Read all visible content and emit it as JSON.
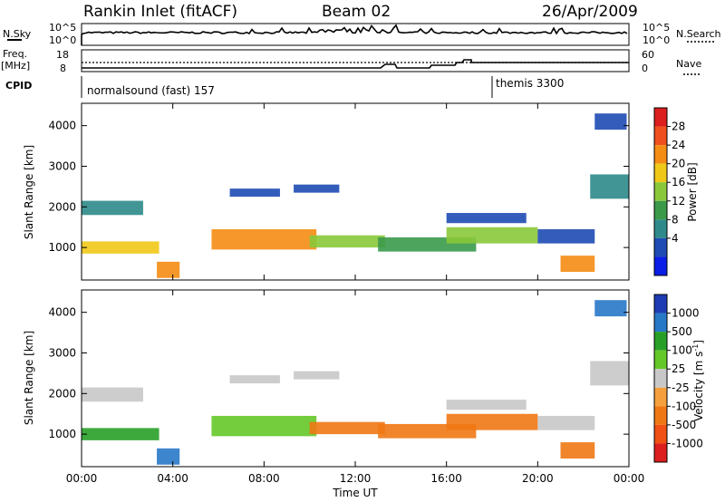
{
  "header": {
    "station": "Rankin Inlet (fitACF)",
    "beam": "Beam 02",
    "date": "26/Apr/2009"
  },
  "chart_data": [
    {
      "type": "line",
      "name": "n-sky-search-panel",
      "left_label": "N.Sky",
      "right_label": "N.Search",
      "left_ticks": [
        "10^5",
        "10^0"
      ],
      "right_ticks": [
        "10^5",
        "10^0"
      ]
    },
    {
      "type": "line",
      "name": "freq-nave-panel",
      "left_label_line1": "Freq.",
      "left_label_line2": "[MHz]",
      "right_label": "Nave",
      "left_ticks": [
        18,
        8
      ],
      "right_ticks": [
        60,
        0
      ]
    },
    {
      "type": "table",
      "name": "cpid-panel",
      "label": "CPID",
      "segments": [
        {
          "text": "normalsound (fast) 157",
          "start_hour": 0
        },
        {
          "text": "themis 3300",
          "start_hour": 18
        }
      ]
    },
    {
      "type": "heatmap",
      "name": "power-panel",
      "ylabel": "Slant Range [km]",
      "yticks": [
        1000,
        2000,
        3000,
        4000
      ],
      "ylim": [
        200,
        4550
      ],
      "xlim": [
        0,
        24
      ],
      "colorbar_label": "Power [dB]",
      "colorbar_ticks": [
        "4",
        "8",
        "12",
        "16",
        "20",
        "24",
        "28"
      ],
      "colorbar_colors": [
        "#0a1ee6",
        "#1e4bb4",
        "#2e8a8a",
        "#3a9a4a",
        "#8ac83a",
        "#f0c818",
        "#f58c14",
        "#f0501e",
        "#dc1e1e"
      ],
      "bands": [
        {
          "t0": 0.0,
          "t1": 2.7,
          "r0": 1800,
          "r1": 2150,
          "level": 2
        },
        {
          "t0": 0.0,
          "t1": 3.4,
          "r0": 850,
          "r1": 1150,
          "level": 5
        },
        {
          "t0": 3.3,
          "t1": 4.3,
          "r0": 250,
          "r1": 650,
          "level": 6
        },
        {
          "t0": 5.7,
          "t1": 10.3,
          "r0": 950,
          "r1": 1450,
          "level": 6
        },
        {
          "t0": 6.5,
          "t1": 8.7,
          "r0": 2250,
          "r1": 2450,
          "level": 1
        },
        {
          "t0": 9.3,
          "t1": 11.3,
          "r0": 2350,
          "r1": 2550,
          "level": 1
        },
        {
          "t0": 10.0,
          "t1": 13.3,
          "r0": 1000,
          "r1": 1300,
          "level": 4
        },
        {
          "t0": 13.0,
          "t1": 17.3,
          "r0": 900,
          "r1": 1250,
          "level": 3
        },
        {
          "t0": 16.0,
          "t1": 20.0,
          "r0": 1100,
          "r1": 1500,
          "level": 4
        },
        {
          "t0": 16.0,
          "t1": 19.5,
          "r0": 1600,
          "r1": 1850,
          "level": 1
        },
        {
          "t0": 20.0,
          "t1": 22.5,
          "r0": 1100,
          "r1": 1450,
          "level": 1
        },
        {
          "t0": 21.0,
          "t1": 22.5,
          "r0": 400,
          "r1": 800,
          "level": 6
        },
        {
          "t0": 22.3,
          "t1": 24.0,
          "r0": 2200,
          "r1": 2800,
          "level": 2
        },
        {
          "t0": 22.5,
          "t1": 23.9,
          "r0": 3900,
          "r1": 4300,
          "level": 1
        }
      ]
    },
    {
      "type": "heatmap",
      "name": "velocity-panel",
      "ylabel": "Slant Range [km]",
      "yticks": [
        1000,
        2000,
        3000,
        4000
      ],
      "ylim": [
        200,
        4550
      ],
      "xlim": [
        0,
        24
      ],
      "xticks": [
        "00:00",
        "04:00",
        "08:00",
        "12:00",
        "16:00",
        "20:00",
        "00:00"
      ],
      "xlabel": "Time UT",
      "colorbar_label_main": "Velocity  [m s",
      "colorbar_label_sup": "-1",
      "colorbar_label_end": "]",
      "colorbar_ticks": [
        "1000",
        "500",
        "100",
        "25",
        "-25",
        "-100",
        "-500",
        "-1000"
      ],
      "colorbar_colors": [
        "#1e3cb4",
        "#2878c8",
        "#28a028",
        "#64c828",
        "#c8c8c8",
        "#f5a03c",
        "#f07814",
        "#f05014",
        "#dc1e1e"
      ],
      "bands": [
        {
          "t0": 0.0,
          "t1": 2.7,
          "r0": 1800,
          "r1": 2150,
          "level": 4
        },
        {
          "t0": 0.0,
          "t1": 3.4,
          "r0": 850,
          "r1": 1150,
          "level": 2
        },
        {
          "t0": 3.3,
          "t1": 4.3,
          "r0": 250,
          "r1": 650,
          "level": 1
        },
        {
          "t0": 5.7,
          "t1": 10.3,
          "r0": 950,
          "r1": 1450,
          "level": 3
        },
        {
          "t0": 6.5,
          "t1": 8.7,
          "r0": 2250,
          "r1": 2450,
          "level": 4
        },
        {
          "t0": 9.3,
          "t1": 11.3,
          "r0": 2350,
          "r1": 2550,
          "level": 4
        },
        {
          "t0": 10.0,
          "t1": 13.3,
          "r0": 1000,
          "r1": 1300,
          "level": 6
        },
        {
          "t0": 13.0,
          "t1": 17.3,
          "r0": 900,
          "r1": 1250,
          "level": 6
        },
        {
          "t0": 16.0,
          "t1": 20.0,
          "r0": 1100,
          "r1": 1500,
          "level": 6
        },
        {
          "t0": 16.0,
          "t1": 19.5,
          "r0": 1600,
          "r1": 1850,
          "level": 4
        },
        {
          "t0": 20.0,
          "t1": 22.5,
          "r0": 1100,
          "r1": 1450,
          "level": 4
        },
        {
          "t0": 21.0,
          "t1": 22.5,
          "r0": 400,
          "r1": 800,
          "level": 6
        },
        {
          "t0": 22.3,
          "t1": 24.0,
          "r0": 2200,
          "r1": 2800,
          "level": 4
        },
        {
          "t0": 22.5,
          "t1": 23.9,
          "r0": 3900,
          "r1": 4300,
          "level": 1
        }
      ]
    }
  ]
}
